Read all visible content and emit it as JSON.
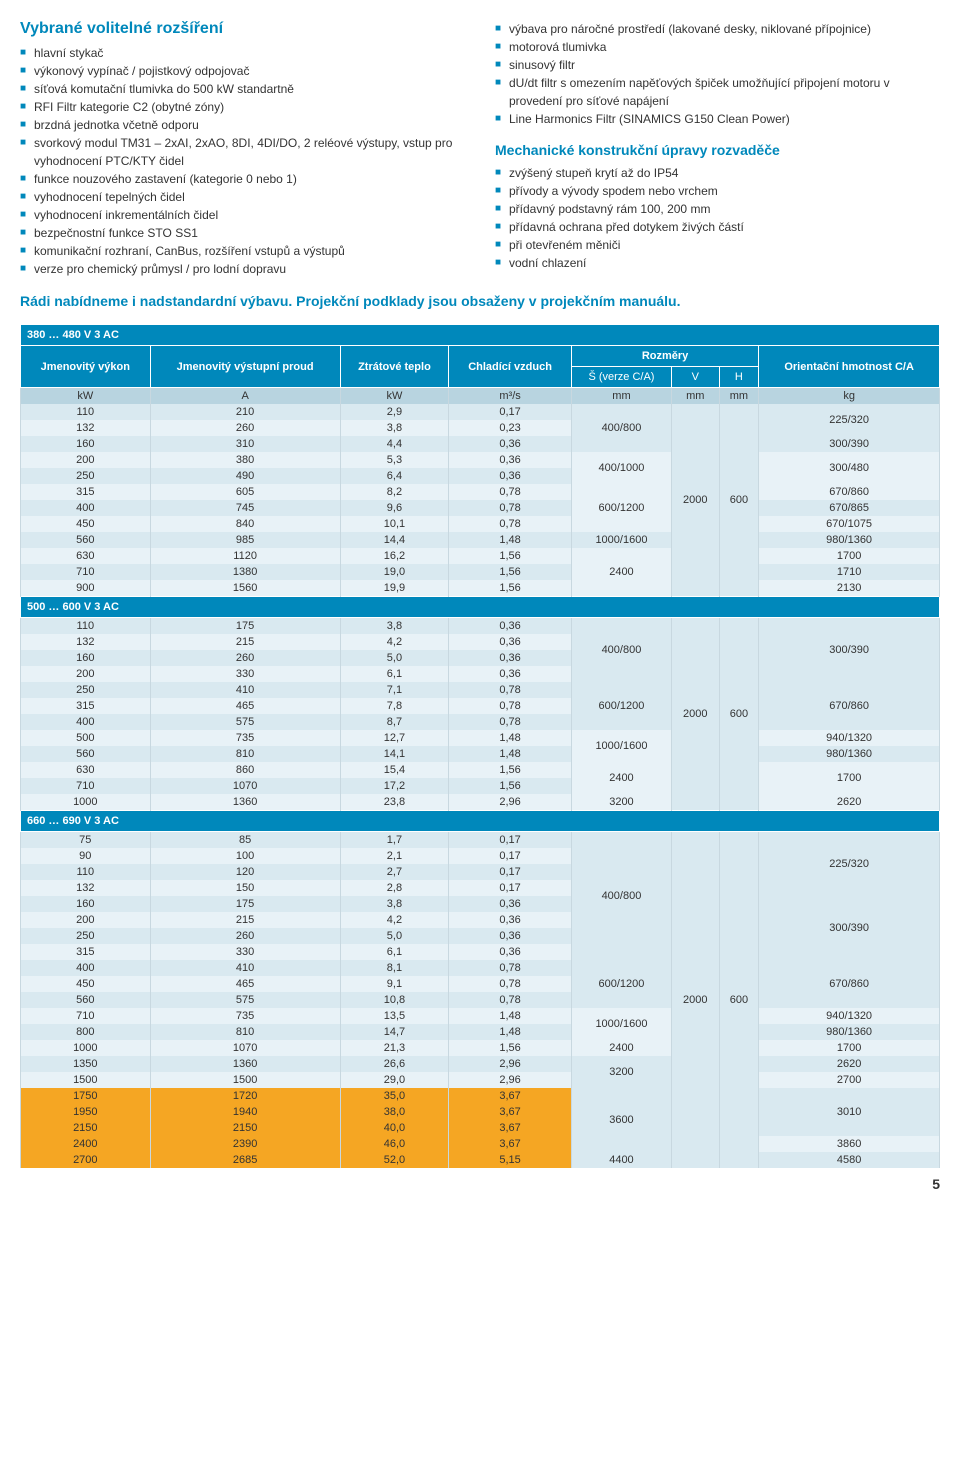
{
  "left": {
    "title": "Vybrané volitelné rozšíření",
    "items": [
      "hlavní stykač",
      "výkonový vypínač / pojistkový odpojovač",
      "síťová komutační tlumivka do 500 kW standartně",
      "RFI Filtr kategorie C2 (obytné zóny)",
      "brzdná jednotka včetně odporu",
      "svorkový modul TM31 – 2xAI, 2xAO, 8DI, 4DI/DO, 2 reléové výstupy, vstup pro vyhodnocení PTC/KTY čidel",
      "funkce nouzového zastavení (kategorie 0 nebo 1)",
      "vyhodnocení tepelných čidel",
      "vyhodnocení inkrementálních čidel",
      "bezpečnostní funkce STO SS1",
      "komunikační rozhraní, CanBus, rozšíření vstupů a výstupů",
      "verze pro chemický průmysl / pro lodní dopravu"
    ]
  },
  "right": {
    "items": [
      "výbava pro náročné prostředí (lakované desky, niklované přípojnice)",
      "motorová tlumivka",
      "sinusový filtr",
      "dU/dt filtr s omezením napěťových špiček umožňující připojení motoru v provedení pro síťové napájení",
      "Line Harmonics Filtr (SINAMICS G150 Clean Power)"
    ],
    "subtitle": "Mechanické konstrukční úpravy rozvaděče",
    "items2": [
      "zvýšený stupeň krytí až do IP54",
      "přívody a vývody spodem nebo vrchem",
      "přídavný podstavný rám 100, 200 mm",
      "přídavná ochrana před dotykem živých částí",
      "při otevřeném měniči",
      "vodní chlazení"
    ]
  },
  "note": "Rádi nabídneme i nadstandardní výbavu. Projekční podklady jsou obsaženy v projekčním manuálu.",
  "headers": {
    "sec1": "380 … 480 V 3 AC",
    "sec2": "500 … 600 V 3 AC",
    "sec3": "660 … 690 V 3 AC",
    "c1": "Jmenovitý výkon",
    "c2": "Jmenovitý výstupní proud",
    "c3": "Ztrátové teplo",
    "c4": "Chladící vzduch",
    "rozmery": "Rozměry",
    "c5": "Š (verze C/A)",
    "c6": "V",
    "c7": "H",
    "c8": "Orientační hmotnost C/A",
    "u1": "kW",
    "u2": "A",
    "u3": "kW",
    "u4": "m³/s",
    "u5": "mm",
    "u6": "mm",
    "u7": "mm",
    "u8": "kg"
  },
  "sec1": {
    "rows": [
      {
        "kw": "110",
        "a": "210",
        "zt": "2,9",
        "cv": "0,17"
      },
      {
        "kw": "132",
        "a": "260",
        "zt": "3,8",
        "cv": "0,23"
      },
      {
        "kw": "160",
        "a": "310",
        "zt": "4,4",
        "cv": "0,36"
      },
      {
        "kw": "200",
        "a": "380",
        "zt": "5,3",
        "cv": "0,36"
      },
      {
        "kw": "250",
        "a": "490",
        "zt": "6,4",
        "cv": "0,36"
      },
      {
        "kw": "315",
        "a": "605",
        "zt": "8,2",
        "cv": "0,78"
      },
      {
        "kw": "400",
        "a": "745",
        "zt": "9,6",
        "cv": "0,78"
      },
      {
        "kw": "450",
        "a": "840",
        "zt": "10,1",
        "cv": "0,78"
      },
      {
        "kw": "560",
        "a": "985",
        "zt": "14,4",
        "cv": "1,48"
      },
      {
        "kw": "630",
        "a": "1120",
        "zt": "16,2",
        "cv": "1,56"
      },
      {
        "kw": "710",
        "a": "1380",
        "zt": "19,0",
        "cv": "1,56"
      },
      {
        "kw": "900",
        "a": "1560",
        "zt": "19,9",
        "cv": "1,56"
      }
    ],
    "s_groups": [
      {
        "val": "400/800",
        "span": 2
      },
      {
        "val": "",
        "span": 1,
        "skip": true
      },
      {
        "val": "400/1000",
        "span": 2
      },
      {
        "val": "600/1200",
        "span": 3
      },
      {
        "val": "1000/1600",
        "span": 1
      },
      {
        "val": "2400",
        "span": 3
      }
    ],
    "v": "2000",
    "h": "600",
    "mass": [
      "225/320",
      "",
      "300/390",
      "300/480",
      "",
      "670/860",
      "670/865",
      "670/1075",
      "980/1360",
      "1700",
      "1710",
      "2130"
    ],
    "mass_merge": [
      2,
      1,
      1,
      2,
      3,
      1,
      1,
      1,
      1,
      1,
      1,
      1
    ]
  },
  "sec2": {
    "rows": [
      {
        "kw": "110",
        "a": "175",
        "zt": "3,8",
        "cv": "0,36"
      },
      {
        "kw": "132",
        "a": "215",
        "zt": "4,2",
        "cv": "0,36"
      },
      {
        "kw": "160",
        "a": "260",
        "zt": "5,0",
        "cv": "0,36"
      },
      {
        "kw": "200",
        "a": "330",
        "zt": "6,1",
        "cv": "0,36"
      },
      {
        "kw": "250",
        "a": "410",
        "zt": "7,1",
        "cv": "0,78"
      },
      {
        "kw": "315",
        "a": "465",
        "zt": "7,8",
        "cv": "0,78"
      },
      {
        "kw": "400",
        "a": "575",
        "zt": "8,7",
        "cv": "0,78"
      },
      {
        "kw": "500",
        "a": "735",
        "zt": "12,7",
        "cv": "1,48"
      },
      {
        "kw": "560",
        "a": "810",
        "zt": "14,1",
        "cv": "1,48"
      },
      {
        "kw": "630",
        "a": "860",
        "zt": "15,4",
        "cv": "1,56"
      },
      {
        "kw": "710",
        "a": "1070",
        "zt": "17,2",
        "cv": "1,56"
      },
      {
        "kw": "1000",
        "a": "1360",
        "zt": "23,8",
        "cv": "2,96"
      }
    ],
    "v": "2000",
    "h": "600"
  },
  "sec3": {
    "rows": [
      {
        "kw": "75",
        "a": "85",
        "zt": "1,7",
        "cv": "0,17"
      },
      {
        "kw": "90",
        "a": "100",
        "zt": "2,1",
        "cv": "0,17"
      },
      {
        "kw": "110",
        "a": "120",
        "zt": "2,7",
        "cv": "0,17"
      },
      {
        "kw": "132",
        "a": "150",
        "zt": "2,8",
        "cv": "0,17"
      },
      {
        "kw": "160",
        "a": "175",
        "zt": "3,8",
        "cv": "0,36"
      },
      {
        "kw": "200",
        "a": "215",
        "zt": "4,2",
        "cv": "0,36"
      },
      {
        "kw": "250",
        "a": "260",
        "zt": "5,0",
        "cv": "0,36"
      },
      {
        "kw": "315",
        "a": "330",
        "zt": "6,1",
        "cv": "0,36"
      },
      {
        "kw": "400",
        "a": "410",
        "zt": "8,1",
        "cv": "0,78"
      },
      {
        "kw": "450",
        "a": "465",
        "zt": "9,1",
        "cv": "0,78"
      },
      {
        "kw": "560",
        "a": "575",
        "zt": "10,8",
        "cv": "0,78"
      },
      {
        "kw": "710",
        "a": "735",
        "zt": "13,5",
        "cv": "1,48"
      },
      {
        "kw": "800",
        "a": "810",
        "zt": "14,7",
        "cv": "1,48"
      },
      {
        "kw": "1000",
        "a": "1070",
        "zt": "21,3",
        "cv": "1,56"
      },
      {
        "kw": "1350",
        "a": "1360",
        "zt": "26,6",
        "cv": "2,96"
      },
      {
        "kw": "1500",
        "a": "1500",
        "zt": "29,0",
        "cv": "2,96"
      },
      {
        "kw": "1750",
        "a": "1720",
        "zt": "35,0",
        "cv": "3,67",
        "hl": true
      },
      {
        "kw": "1950",
        "a": "1940",
        "zt": "38,0",
        "cv": "3,67",
        "hl": true
      },
      {
        "kw": "2150",
        "a": "2150",
        "zt": "40,0",
        "cv": "3,67",
        "hl": true
      },
      {
        "kw": "2400",
        "a": "2390",
        "zt": "46,0",
        "cv": "3,67",
        "hl": true
      },
      {
        "kw": "2700",
        "a": "2685",
        "zt": "52,0",
        "cv": "5,15",
        "hl": true
      }
    ],
    "v": "2000",
    "h": "600"
  },
  "pagenum": "5"
}
